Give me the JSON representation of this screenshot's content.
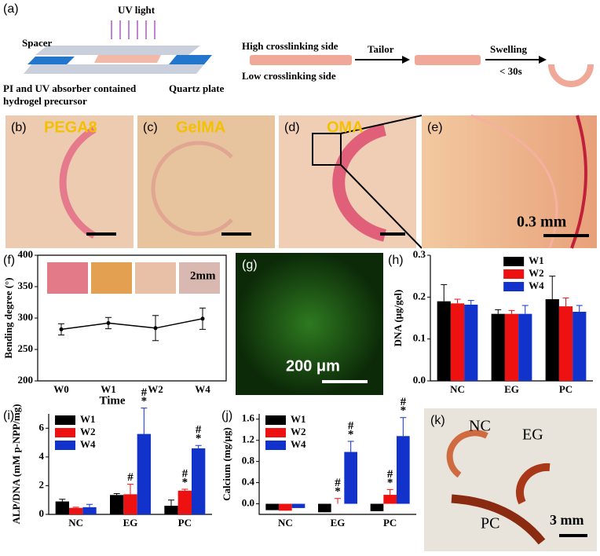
{
  "figure": {
    "panel_labels": [
      "(a)",
      "(b)",
      "(c)",
      "(d)",
      "(e)",
      "(f)",
      "(g)",
      "(h)",
      "(i)",
      "(j)",
      "(k)"
    ],
    "schematic": {
      "uv": "UV light",
      "spacer": "Spacer",
      "precursor_1": "PI and UV absorber contained",
      "precursor_2": "hydrogel precursor",
      "quartz": "Quartz plate",
      "high": "High crosslinking side",
      "low": "Low crosslinking side",
      "tailor": "Tailor",
      "swelling": "Swelling",
      "time": "< 30s"
    },
    "photos": {
      "b": "PEGA8",
      "c": "GelMA",
      "d": "OMA",
      "e_scale": "0.3 mm",
      "f_scale": "2mm",
      "g_scale": "200 μm",
      "k_nc": "NC",
      "k_eg": "EG",
      "k_pc": "PC",
      "k_scale": "3 mm"
    }
  },
  "chart_data": [
    {
      "type": "line",
      "ylabel": "Bending degree (°)",
      "xlabel": "Time",
      "categories": [
        "W0",
        "W1",
        "W2",
        "W4"
      ],
      "values": [
        282,
        292,
        284,
        299
      ],
      "errors": [
        9,
        9,
        20,
        17
      ],
      "color": "#000000",
      "ylim": [
        200,
        400
      ],
      "yticks": [
        200,
        250,
        300,
        350,
        400
      ]
    },
    {
      "type": "bar",
      "ylabel": "DNA (μg/gel)",
      "categories": [
        "NC",
        "EG",
        "PC"
      ],
      "legend": "upper right",
      "series": [
        {
          "name": "W1",
          "color": "#000000",
          "values": [
            0.19,
            0.16,
            0.195
          ],
          "errors": [
            0.04,
            0.01,
            0.055
          ]
        },
        {
          "name": "W2",
          "color": "#ee1111",
          "values": [
            0.185,
            0.16,
            0.178
          ],
          "errors": [
            0.01,
            0.008,
            0.02
          ]
        },
        {
          "name": "W4",
          "color": "#1133cc",
          "values": [
            0.182,
            0.16,
            0.165
          ],
          "errors": [
            0.01,
            0.02,
            0.015
          ]
        }
      ],
      "ylim": [
        0,
        0.3
      ],
      "yticks": [
        {
          "value": 0,
          "label": "0.0"
        },
        {
          "value": 0.1,
          "label": "0.1"
        },
        {
          "value": 0.2,
          "label": "0.2"
        },
        {
          "value": 0.3,
          "label": "0.3"
        }
      ]
    },
    {
      "type": "bar",
      "ylabel": "ALP/DNA (mM p-NPP/mg)",
      "categories": [
        "NC",
        "EG",
        "PC"
      ],
      "legend": "upper left",
      "series": [
        {
          "name": "W1",
          "color": "#000000",
          "values": [
            0.9,
            1.35,
            0.6
          ],
          "errors": [
            0.15,
            0.1,
            0.4
          ],
          "marks": [
            null,
            null,
            null
          ]
        },
        {
          "name": "W2",
          "color": "#ee1111",
          "values": [
            0.45,
            1.4,
            1.65
          ],
          "errors": [
            0.05,
            0.7,
            0.1
          ],
          "marks": [
            null,
            [
              "#"
            ],
            [
              "#",
              "*"
            ]
          ]
        },
        {
          "name": "W4",
          "color": "#1133cc",
          "values": [
            0.5,
            5.6,
            4.6
          ],
          "errors": [
            0.2,
            1.8,
            0.2
          ],
          "marks": [
            null,
            [
              "#",
              "*"
            ],
            [
              "#",
              "*"
            ]
          ]
        }
      ],
      "ylim": [
        0,
        7
      ],
      "yticks": [
        0,
        2,
        4,
        6
      ]
    },
    {
      "type": "bar",
      "ylabel": "Calcium (mg/μg)",
      "categories": [
        "NC",
        "EG",
        "PC"
      ],
      "legend": "upper left",
      "series": [
        {
          "name": "W1",
          "color": "#000000",
          "values": [
            -0.12,
            -0.16,
            -0.14
          ],
          "errors": [
            0.02,
            0.02,
            0.03
          ],
          "marks": [
            null,
            null,
            null
          ]
        },
        {
          "name": "W2",
          "color": "#ee1111",
          "values": [
            -0.13,
            0.0,
            0.17
          ],
          "errors": [
            0.02,
            0.1,
            0.1
          ],
          "marks": [
            null,
            [
              "#",
              "*"
            ],
            [
              "#",
              "*"
            ]
          ]
        },
        {
          "name": "W4",
          "color": "#1133cc",
          "values": [
            -0.08,
            0.98,
            1.28
          ],
          "errors": [
            0.03,
            0.2,
            0.35
          ],
          "marks": [
            null,
            [
              "#",
              "*"
            ],
            [
              "#",
              "*"
            ]
          ]
        }
      ],
      "ylim": [
        -0.2,
        1.7
      ],
      "yticks": [
        {
          "value": 0,
          "label": "0.0"
        },
        {
          "value": 0.4,
          "label": "0.4"
        },
        {
          "value": 0.8,
          "label": "0.8"
        },
        {
          "value": 1.2,
          "label": "1.2"
        },
        {
          "value": 1.6,
          "label": "1.6"
        }
      ]
    }
  ]
}
